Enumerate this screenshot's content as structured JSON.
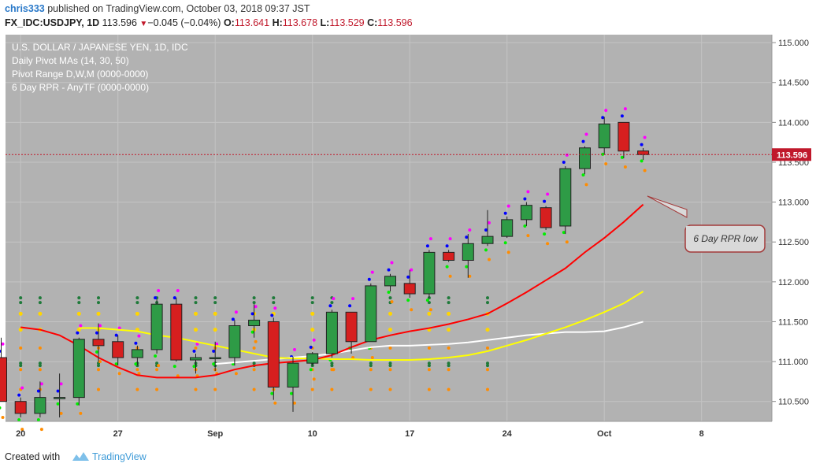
{
  "header": {
    "user": "chris333",
    "published_text": "published on TradingView.com, October 03, 2018 09:37 JST",
    "symbol": "FX_IDC:USDJPY, 1D",
    "last": "113.596",
    "change": "−0.045 (−0.04%)",
    "o_label": "O:",
    "o": "113.641",
    "h_label": "H:",
    "h": "113.678",
    "l_label": "L:",
    "l": "113.529",
    "c_label": "C:",
    "c": "113.596"
  },
  "legend": {
    "title": "U.S. DOLLAR / JAPANESE YEN, 1D, IDC",
    "ind1": "Daily Pivot MAs (14, 30, 50)",
    "ind2": "Pivot Range D,W,M (0000-0000)",
    "ind3": "6 Day RPR - AnyTF (0000-0000)"
  },
  "footer": {
    "created": "Created with",
    "brand": "TradingView"
  },
  "annotation": {
    "text": "6 Day RPR low"
  },
  "colors": {
    "background": "#b2b2b2",
    "up": "#2e9b46",
    "down": "#d61f1f",
    "ma_red": "#ff0000",
    "ma_yellow": "#ffff00",
    "ma_white": "#ffffff",
    "last_price": "#c0182b"
  },
  "chart_data": {
    "type": "candlestick",
    "ylim": [
      110.25,
      115.1
    ],
    "y_ticks": [
      "115.000",
      "114.500",
      "114.000",
      "113.500",
      "113.000",
      "112.500",
      "112.000",
      "111.500",
      "111.000",
      "110.500"
    ],
    "x_ticks": [
      {
        "label": "20",
        "index": 1
      },
      {
        "label": "27",
        "index": 6
      },
      {
        "label": "Sep",
        "index": 11
      },
      {
        "label": "10",
        "index": 16
      },
      {
        "label": "17",
        "index": 21
      },
      {
        "label": "24",
        "index": 26
      },
      {
        "label": "Oct",
        "index": 31
      },
      {
        "label": "8",
        "index": 36
      }
    ],
    "last_price": "113.596",
    "candles": [
      {
        "o": 111.05,
        "h": 111.3,
        "l": 110.5,
        "c": 110.5
      },
      {
        "o": 110.5,
        "h": 110.55,
        "l": 110.3,
        "c": 110.35
      },
      {
        "o": 110.35,
        "h": 110.75,
        "l": 110.3,
        "c": 110.55
      },
      {
        "o": 110.55,
        "h": 110.85,
        "l": 110.3,
        "c": 110.55
      },
      {
        "o": 110.55,
        "h": 111.3,
        "l": 110.45,
        "c": 111.28
      },
      {
        "o": 111.28,
        "h": 111.48,
        "l": 111.0,
        "c": 111.2
      },
      {
        "o": 111.25,
        "h": 111.33,
        "l": 110.95,
        "c": 111.05
      },
      {
        "o": 111.05,
        "h": 111.2,
        "l": 110.95,
        "c": 111.15
      },
      {
        "o": 111.15,
        "h": 111.78,
        "l": 111.1,
        "c": 111.72
      },
      {
        "o": 111.72,
        "h": 111.8,
        "l": 111.0,
        "c": 111.02
      },
      {
        "o": 111.02,
        "h": 111.1,
        "l": 110.85,
        "c": 111.05
      },
      {
        "o": 111.05,
        "h": 111.25,
        "l": 110.88,
        "c": 111.05
      },
      {
        "o": 111.05,
        "h": 111.52,
        "l": 110.95,
        "c": 111.45
      },
      {
        "o": 111.45,
        "h": 111.72,
        "l": 111.3,
        "c": 111.52
      },
      {
        "o": 111.5,
        "h": 111.55,
        "l": 110.52,
        "c": 110.68
      },
      {
        "o": 110.68,
        "h": 111.06,
        "l": 110.37,
        "c": 110.98
      },
      {
        "o": 110.98,
        "h": 111.12,
        "l": 110.95,
        "c": 111.1
      },
      {
        "o": 111.1,
        "h": 111.65,
        "l": 111.05,
        "c": 111.62
      },
      {
        "o": 111.62,
        "h": 111.62,
        "l": 111.1,
        "c": 111.25
      },
      {
        "o": 111.25,
        "h": 111.98,
        "l": 111.25,
        "c": 111.95
      },
      {
        "o": 111.95,
        "h": 112.1,
        "l": 111.88,
        "c": 112.07
      },
      {
        "o": 111.98,
        "h": 112.15,
        "l": 111.8,
        "c": 111.85
      },
      {
        "o": 111.85,
        "h": 112.4,
        "l": 111.8,
        "c": 112.37
      },
      {
        "o": 112.37,
        "h": 112.4,
        "l": 112.25,
        "c": 112.27
      },
      {
        "o": 112.27,
        "h": 112.6,
        "l": 112.05,
        "c": 112.48
      },
      {
        "o": 112.48,
        "h": 112.9,
        "l": 112.45,
        "c": 112.57
      },
      {
        "o": 112.57,
        "h": 112.82,
        "l": 112.55,
        "c": 112.78
      },
      {
        "o": 112.78,
        "h": 113.0,
        "l": 112.7,
        "c": 112.96
      },
      {
        "o": 112.93,
        "h": 112.95,
        "l": 112.65,
        "c": 112.68
      },
      {
        "o": 112.7,
        "h": 113.45,
        "l": 112.6,
        "c": 113.42
      },
      {
        "o": 113.42,
        "h": 113.7,
        "l": 113.35,
        "c": 113.68
      },
      {
        "o": 113.68,
        "h": 114.07,
        "l": 113.6,
        "c": 113.98
      },
      {
        "o": 114.0,
        "h": 114.0,
        "l": 113.55,
        "c": 113.64
      },
      {
        "o": 113.641,
        "h": 113.678,
        "l": 113.529,
        "c": 113.596
      }
    ],
    "ma_red": [
      111.43,
      111.4,
      111.33,
      111.2,
      111.05,
      110.93,
      110.83,
      110.8,
      110.8,
      110.8,
      110.83,
      110.9,
      110.95,
      110.98,
      111.0,
      111.02,
      111.08,
      111.18,
      111.27,
      111.33,
      111.38,
      111.42,
      111.47,
      111.53,
      111.6,
      111.73,
      111.87,
      112.02,
      112.17,
      112.37,
      112.55,
      112.75,
      112.97
    ],
    "ma_yellow": [
      111.42,
      111.42,
      111.4,
      111.38,
      111.33,
      111.3,
      111.25,
      111.2,
      111.15,
      111.1,
      111.05,
      111.04,
      111.04,
      111.03,
      111.03,
      111.02,
      111.02,
      111.02,
      111.03,
      111.05,
      111.08,
      111.13,
      111.2,
      111.27,
      111.35,
      111.43,
      111.52,
      111.62,
      111.73,
      111.88
    ],
    "ma_white": [
      110.97,
      110.99,
      111.01,
      111.03,
      111.05,
      111.07,
      111.1,
      111.14,
      111.18,
      111.2,
      111.2,
      111.21,
      111.22,
      111.24,
      111.27,
      111.3,
      111.33,
      111.35,
      111.37,
      111.37,
      111.38,
      111.43,
      111.5
    ],
    "pivot_dots": [
      {
        "color": "#1f7a3a",
        "size": 2,
        "levels": [
          111.8,
          111.74,
          110.98,
          110.95
        ]
      },
      {
        "color": "#ffd500",
        "size": 2.5,
        "levels": [
          111.4,
          111.6
        ]
      },
      {
        "color": "#ff8c00",
        "size": 2,
        "levels": [
          111.17,
          110.9,
          110.65
        ]
      }
    ]
  }
}
